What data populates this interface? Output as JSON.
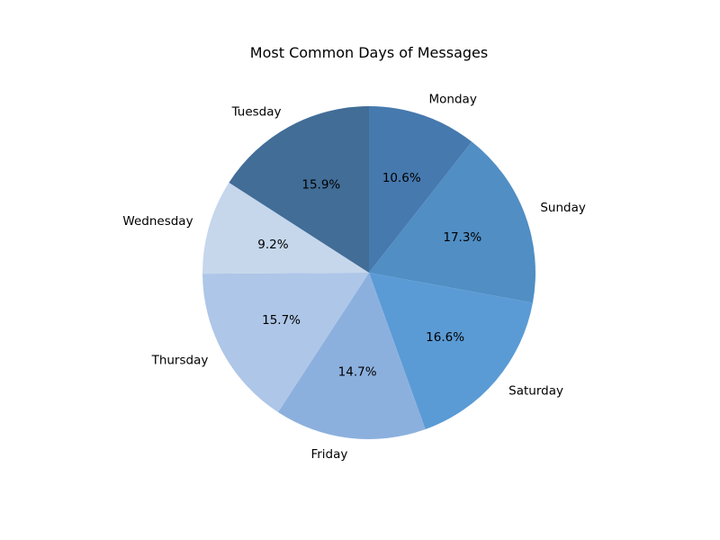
{
  "chart_data": {
    "type": "pie",
    "title": "Most Common Days of Messages",
    "start_angle_deg": 90,
    "direction": "clockwise",
    "slices": [
      {
        "label": "Monday",
        "value": 10.6,
        "pct_label": "10.6%",
        "color": "#4679ae"
      },
      {
        "label": "Sunday",
        "value": 17.3,
        "pct_label": "17.3%",
        "color": "#508ec4"
      },
      {
        "label": "Saturday",
        "value": 16.6,
        "pct_label": "16.6%",
        "color": "#5a9bd5"
      },
      {
        "label": "Friday",
        "value": 14.7,
        "pct_label": "14.7%",
        "color": "#8cb0de"
      },
      {
        "label": "Thursday",
        "value": 15.7,
        "pct_label": "15.7%",
        "color": "#aec6e7"
      },
      {
        "label": "Wednesday",
        "value": 9.2,
        "pct_label": "9.2%",
        "color": "#c6d7ec"
      },
      {
        "label": "Tuesday",
        "value": 15.9,
        "pct_label": "15.9%",
        "color": "#416d97"
      }
    ]
  }
}
